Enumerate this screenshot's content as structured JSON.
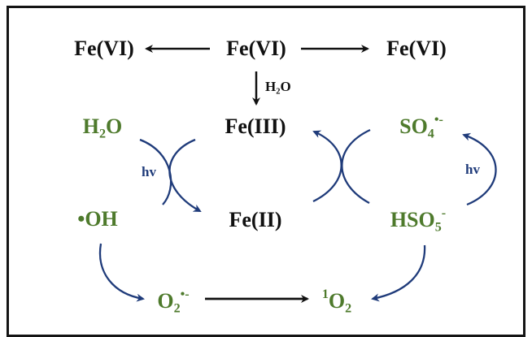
{
  "top_row": {
    "left": "Fe(VI)",
    "center": "Fe(VI)",
    "right": "Fe(VI)"
  },
  "water_label": {
    "main": "H",
    "sub": "2",
    "tail": "O"
  },
  "middle": {
    "h2o": {
      "main": "H",
      "sub": "2",
      "tail": "O"
    },
    "fe3": "Fe(III)",
    "so4": {
      "main": "SO",
      "sub": "4",
      "sup": "•-"
    }
  },
  "lower": {
    "oh": "•OH",
    "fe2": "Fe(II)",
    "hso5": {
      "main": "HSO",
      "sub": "5",
      "sup": "-"
    }
  },
  "bottom": {
    "o2_radical": {
      "main": "O",
      "sub": "2",
      "sup": "•-"
    },
    "singlet_o2": {
      "pre": "1",
      "main": "O",
      "sub": "2"
    }
  },
  "hv_label": "hv",
  "colors": {
    "black_text": "#111111",
    "green_text": "#4e7a2c",
    "blue_arrow": "#1f3b7a",
    "black_arrow": "#111111"
  }
}
